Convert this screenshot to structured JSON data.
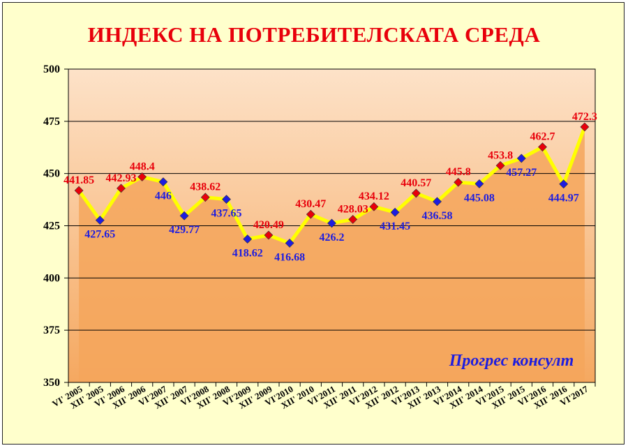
{
  "colors": {
    "title": "#e8000b",
    "line": "#ffff00",
    "marker_red": "#e8000b",
    "marker_blue": "#1d1de0",
    "label_red": "#e8000b",
    "label_blue": "#1d1de0",
    "plot_top": "#fde2c8",
    "plot_bottom": "#f5a860",
    "area_fill": "#f4a65c",
    "page_bg": "#ffffcc"
  },
  "chart_data": {
    "type": "line",
    "title": "ИНДЕКС НА ПОТРЕБИТЕЛСКАТА СРЕДА",
    "watermark": "Прогрес консулт",
    "categories": [
      "VI' 2005",
      "XII' 2005",
      "VI' 2006",
      "XII' 2006",
      "VI'2007",
      "XII' 2007",
      "VI'2008",
      "XII' 2008",
      "VI'2009",
      "XII' 2009",
      "VI'2010",
      "XII' 2010",
      "VI'2011",
      "XII' 2011",
      "VI'2012",
      "XII' 2012",
      "VI'2013",
      "XII' 2013",
      "VI'2014",
      "XII' 2014",
      "VI'2015",
      "XII' 2015",
      "VI'2016",
      "XII' 2016",
      "VI'2017"
    ],
    "values": [
      441.85,
      427.65,
      442.93,
      448.4,
      446,
      429.77,
      438.62,
      437.65,
      418.62,
      420.49,
      416.68,
      430.47,
      426.2,
      428.03,
      434.12,
      431.45,
      440.57,
      436.58,
      445.8,
      445.08,
      453.8,
      457.27,
      462.7,
      444.97,
      472.3
    ],
    "value_labels": [
      "441.85",
      "427.65",
      "442.93",
      "448.4",
      "446",
      "429.77",
      "438.62",
      "437.65",
      "418.62",
      "420.49",
      "416.68",
      "430.47",
      "426.2",
      "428.03",
      "434.12",
      "431.45",
      "440.57",
      "436.58",
      "445.8",
      "445.08",
      "453.8",
      "457.27",
      "462.7",
      "444.97",
      "472.3"
    ],
    "marker_colors": [
      "red",
      "blue",
      "red",
      "red",
      "blue",
      "blue",
      "red",
      "blue",
      "blue",
      "red",
      "blue",
      "red",
      "blue",
      "red",
      "red",
      "blue",
      "red",
      "blue",
      "red",
      "blue",
      "red",
      "blue",
      "red",
      "blue",
      "red"
    ],
    "yticks": [
      "350",
      "375",
      "400",
      "425",
      "450",
      "475",
      "500"
    ],
    "ylim": [
      350,
      500
    ],
    "grid": true,
    "xlabel": "",
    "ylabel": ""
  }
}
